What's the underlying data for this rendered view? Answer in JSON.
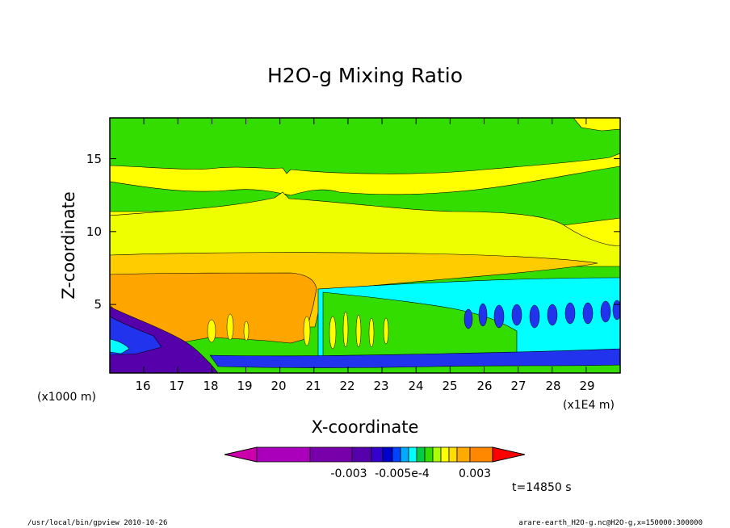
{
  "chart_data": {
    "type": "heatmap",
    "subtype": "filled-contour",
    "title": "H2O-g Mixing Ratio",
    "xlabel": "X-coordinate",
    "ylabel": "Z-coordinate",
    "x_units_left": "(x1000 m)",
    "x_units_right": "(x1E4 m)",
    "x_ticks": [
      "16",
      "17",
      "18",
      "19",
      "20",
      "21",
      "22",
      "23",
      "24",
      "25",
      "26",
      "27",
      "28",
      "29"
    ],
    "y_ticks": [
      "5",
      "10",
      "15"
    ],
    "xlim": [
      15.0,
      30.0
    ],
    "ylim": [
      0.3,
      17.8
    ],
    "colorbar": {
      "colors": [
        "#cc00aa",
        "#aa00bb",
        "#7700aa",
        "#5500aa",
        "#3300cc",
        "#0000cc",
        "#0044ff",
        "#00aaff",
        "#00ffff",
        "#00cc44",
        "#33dd00",
        "#aaff00",
        "#ffff00",
        "#ffdd00",
        "#ffaa00",
        "#ff8800",
        "#ff0000"
      ],
      "labels": [
        "-0.003",
        "-0.005e-4",
        "0.003"
      ]
    },
    "regions_z_top": {
      "yellow": 14.5,
      "bright_yellow": 11.0,
      "light_orange": 8.4,
      "orange": 7.0,
      "cyan": 6.0,
      "blue": 2.0
    },
    "time_label": "t=14850 s"
  },
  "footer": {
    "left": "/usr/local/bin/gpview  2010-10-26",
    "right": "arare-earth_H2O-g.nc@H2O-g,x=150000:300000"
  },
  "colors": {
    "green": "#33dd00",
    "yellow": "#ffff00",
    "bright_yellow": "#eeff00",
    "light_orange": "#ffcc00",
    "orange": "#ffa500",
    "cyan": "#00ffff",
    "blue": "#2233ee",
    "purple": "#5500aa"
  }
}
